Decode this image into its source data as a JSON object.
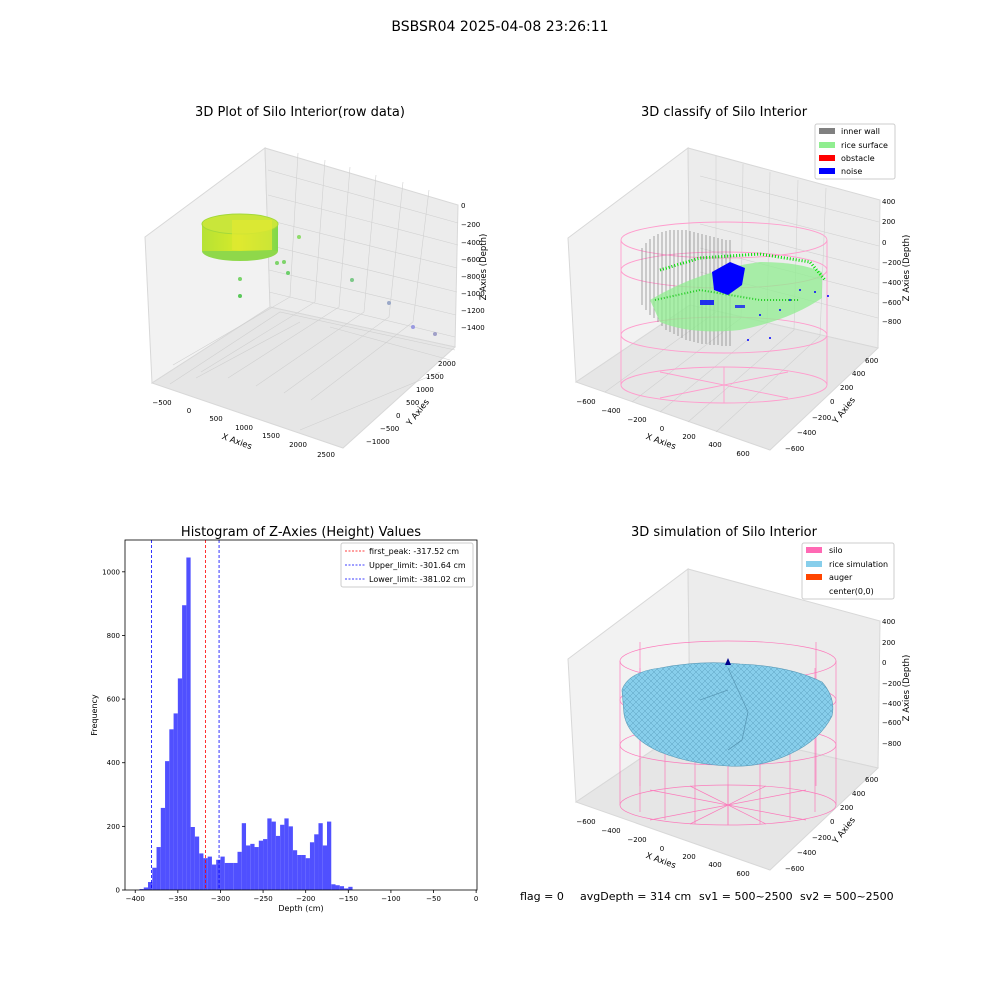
{
  "figure": {
    "suptitle": "BSBSR04 2025-04-08 23:26:11",
    "footer": {
      "flag": "flag = 0",
      "avg_depth": "avgDepth = 314 cm",
      "sv1": "sv1 = 500~2500",
      "sv2": "sv2 = 500~2500"
    }
  },
  "colors": {
    "inner_wall": "#808080",
    "rice_surface": "#90ee90",
    "obstacle": "#ff0000",
    "noise": "#0000ff",
    "silo": "#ff69b4",
    "rice_simulation": "#87ceeb",
    "auger": "#ff4500",
    "hist_bar": "#5050ff",
    "first_peak_line": "#ff0000",
    "limit_line": "#0000ff"
  },
  "chart_data": [
    {
      "type": "scatter",
      "title": "3D Plot of Silo Interior(row data)",
      "projection": "3d",
      "xlabel": "X Axies",
      "ylabel": "Y Axies",
      "zlabel": "Z Axies (Depth)",
      "x_ticks": [
        "−500",
        "0",
        "500",
        "1000",
        "1500",
        "2000",
        "2500"
      ],
      "y_ticks": [
        "−1000",
        "−500",
        "0",
        "500",
        "1000",
        "1500",
        "2000"
      ],
      "z_ticks": [
        "0",
        "−200",
        "−400",
        "−600",
        "−800",
        "−1000",
        "−1200",
        "−1400"
      ],
      "grid": true
    },
    {
      "type": "scatter",
      "title": "3D classify of Silo Interior",
      "projection": "3d",
      "xlabel": "X Axies",
      "ylabel": "Y Axies",
      "zlabel": "Z Axies (Depth)",
      "x_ticks": [
        "−600",
        "−400",
        "−200",
        "0",
        "200",
        "400",
        "600"
      ],
      "y_ticks": [
        "−600",
        "−400",
        "−200",
        "0",
        "200",
        "400",
        "600"
      ],
      "z_ticks": [
        "400",
        "200",
        "0",
        "−200",
        "−400",
        "−600",
        "−800"
      ],
      "legend": [
        "inner wall",
        "rice surface",
        "obstacle",
        "noise"
      ],
      "legend_position": "top-right",
      "grid": true
    },
    {
      "type": "bar",
      "title": "Histogram of Z-Axies (Height) Values",
      "xlabel": "Depth (cm)",
      "ylabel": "Frequency",
      "xlim": [
        -412,
        1
      ],
      "ylim": [
        0,
        1100
      ],
      "x_ticks": [
        -400,
        -350,
        -300,
        -250,
        -200,
        -150,
        -100,
        -50,
        0
      ],
      "x_tick_labels": [
        "−400",
        "−350",
        "−300",
        "−250",
        "−200",
        "−150",
        "−100",
        "−50",
        "0"
      ],
      "y_ticks": [
        0,
        200,
        400,
        600,
        800,
        1000
      ],
      "y_tick_labels": [
        "0",
        "200",
        "400",
        "600",
        "800",
        "1000"
      ],
      "bin_width": 5,
      "bins": [
        {
          "x": -395,
          "y": 3
        },
        {
          "x": -390,
          "y": 8
        },
        {
          "x": -385,
          "y": 25
        },
        {
          "x": -380,
          "y": 70
        },
        {
          "x": -375,
          "y": 135
        },
        {
          "x": -370,
          "y": 258
        },
        {
          "x": -365,
          "y": 405
        },
        {
          "x": -360,
          "y": 505
        },
        {
          "x": -355,
          "y": 555
        },
        {
          "x": -350,
          "y": 665
        },
        {
          "x": -345,
          "y": 895
        },
        {
          "x": -340,
          "y": 1045
        },
        {
          "x": -335,
          "y": 198
        },
        {
          "x": -330,
          "y": 168
        },
        {
          "x": -325,
          "y": 115
        },
        {
          "x": -320,
          "y": 100
        },
        {
          "x": -315,
          "y": 105
        },
        {
          "x": -310,
          "y": 80
        },
        {
          "x": -305,
          "y": 95
        },
        {
          "x": -300,
          "y": 105
        },
        {
          "x": -295,
          "y": 85
        },
        {
          "x": -290,
          "y": 85
        },
        {
          "x": -285,
          "y": 85
        },
        {
          "x": -280,
          "y": 120
        },
        {
          "x": -275,
          "y": 210
        },
        {
          "x": -270,
          "y": 140
        },
        {
          "x": -265,
          "y": 145
        },
        {
          "x": -260,
          "y": 135
        },
        {
          "x": -255,
          "y": 155
        },
        {
          "x": -250,
          "y": 160
        },
        {
          "x": -245,
          "y": 225
        },
        {
          "x": -240,
          "y": 215
        },
        {
          "x": -235,
          "y": 170
        },
        {
          "x": -230,
          "y": 205
        },
        {
          "x": -225,
          "y": 225
        },
        {
          "x": -220,
          "y": 200
        },
        {
          "x": -215,
          "y": 125
        },
        {
          "x": -210,
          "y": 110
        },
        {
          "x": -205,
          "y": 110
        },
        {
          "x": -200,
          "y": 100
        },
        {
          "x": -195,
          "y": 150
        },
        {
          "x": -190,
          "y": 175
        },
        {
          "x": -185,
          "y": 210
        },
        {
          "x": -180,
          "y": 140
        },
        {
          "x": -175,
          "y": 215
        },
        {
          "x": -170,
          "y": 18
        },
        {
          "x": -165,
          "y": 15
        },
        {
          "x": -160,
          "y": 12
        },
        {
          "x": -155,
          "y": 5
        },
        {
          "x": -150,
          "y": 10
        }
      ],
      "vlines": [
        {
          "label": "first_peak: -317.52 cm",
          "x": -317.52,
          "color": "#ff0000"
        },
        {
          "label": "Upper_limit: -301.64 cm",
          "x": -301.64,
          "color": "#0000ff"
        },
        {
          "label": "Lower_limit: -381.02 cm",
          "x": -381.02,
          "color": "#0000ff"
        }
      ],
      "legend_position": "top-right"
    },
    {
      "type": "surface",
      "title": "3D simulation of Silo Interior",
      "projection": "3d",
      "xlabel": "X Axies",
      "ylabel": "Y Axies",
      "zlabel": "Z Axies (Depth)",
      "x_ticks": [
        "−600",
        "−400",
        "−200",
        "0",
        "200",
        "400",
        "600"
      ],
      "y_ticks": [
        "−600",
        "−400",
        "−200",
        "0",
        "200",
        "400",
        "600"
      ],
      "z_ticks": [
        "400",
        "200",
        "0",
        "−200",
        "−400",
        "−600",
        "−800"
      ],
      "legend": [
        "silo",
        "rice simulation",
        "auger",
        "center(0,0)"
      ],
      "legend_position": "top-right",
      "grid": true
    }
  ]
}
